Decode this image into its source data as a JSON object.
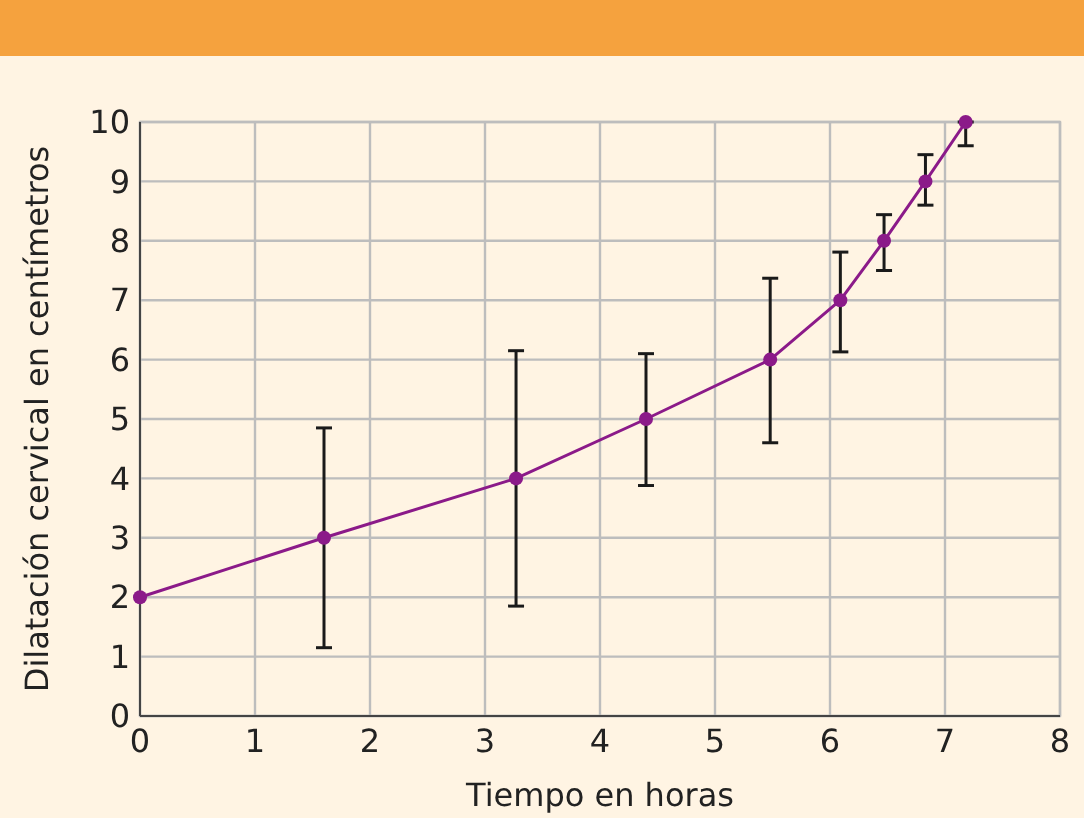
{
  "chart_data": {
    "type": "line",
    "xlabel": "Tiempo en horas",
    "ylabel": "Dilatación cervical en centímetros",
    "x": [
      0,
      1.6,
      3.27,
      4.4,
      5.48,
      6.09,
      6.47,
      6.83,
      7.18
    ],
    "series": [
      {
        "color": "#8b1a89",
        "values": [
          2,
          3,
          4,
          5,
          6,
          7,
          8,
          9,
          10
        ],
        "errors": [
          null,
          [
            1.15,
            4.85
          ],
          [
            1.85,
            6.15
          ],
          [
            3.88,
            6.1
          ],
          [
            4.6,
            7.37
          ],
          [
            6.13,
            7.81
          ],
          [
            7.5,
            8.44
          ],
          [
            8.6,
            9.45
          ],
          [
            9.6,
            10
          ]
        ]
      }
    ],
    "xlim": [
      0,
      8
    ],
    "xticks": [
      0,
      1,
      2,
      3,
      4,
      5,
      6,
      7,
      8
    ],
    "ylim": [
      0,
      10
    ],
    "yticks": [
      0,
      1,
      2,
      3,
      4,
      5,
      6,
      7,
      8,
      9,
      10
    ],
    "grid": true,
    "marker": "circle",
    "line_style": "solid"
  }
}
